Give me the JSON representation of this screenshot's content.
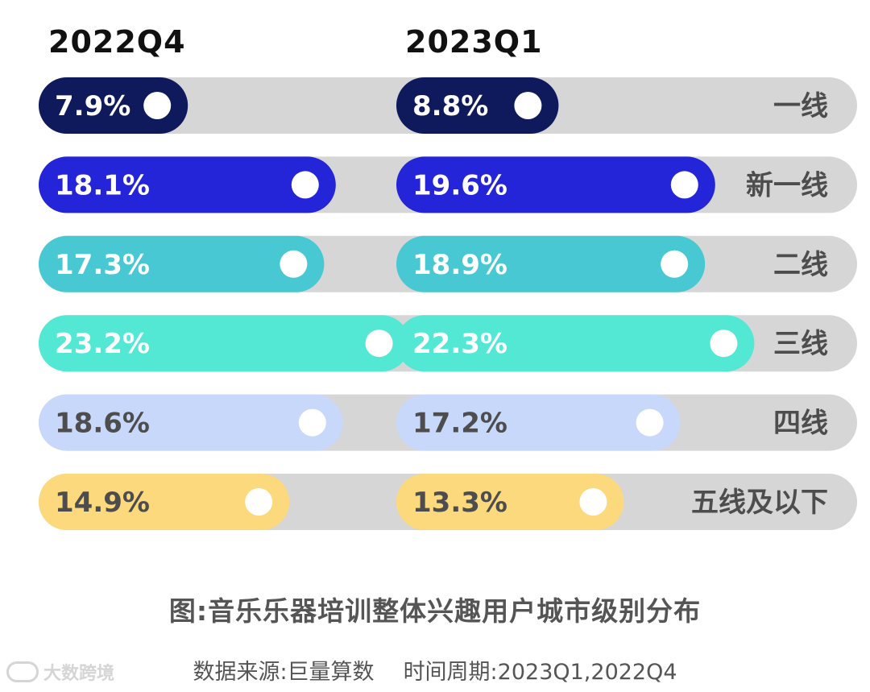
{
  "chart_data": {
    "type": "bar",
    "orientation": "horizontal",
    "categories": [
      "一线",
      "新一线",
      "二线",
      "三线",
      "四线",
      "五线及以下"
    ],
    "series": [
      {
        "name": "2022Q4",
        "values": [
          7.9,
          18.1,
          17.3,
          23.2,
          18.6,
          14.9
        ]
      },
      {
        "name": "2023Q1",
        "values": [
          8.8,
          19.6,
          18.9,
          22.3,
          17.2,
          13.3
        ]
      }
    ],
    "value_labels": {
      "2022Q4": [
        "7.9%",
        "18.1%",
        "17.3%",
        "23.2%",
        "18.6%",
        "14.9%"
      ],
      "2023Q1": [
        "8.8%",
        "19.6%",
        "18.9%",
        "22.3%",
        "17.2%",
        "13.3%"
      ]
    },
    "category_colors": [
      "#0f1a5c",
      "#2424d9",
      "#48c8d2",
      "#52e8d4",
      "#c8d8fb",
      "#fbd97c"
    ],
    "label_colors": [
      "#ffffff",
      "#ffffff",
      "#ffffff",
      "#ffffff",
      "#4d4d4d",
      "#4d4d4d"
    ],
    "track_color": "#d6d6d6",
    "legend": "none",
    "grid": false
  },
  "caption": "图:音乐乐器培训整体兴趣用户城市级别分布",
  "source": "数据来源:巨量算数",
  "period": "时间周期:2023Q1,2022Q4",
  "watermark": "大数跨境"
}
